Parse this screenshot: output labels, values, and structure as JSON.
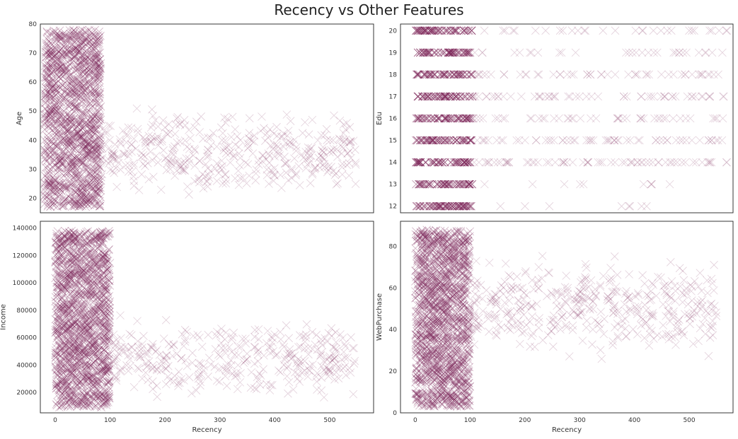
{
  "title": "Recency vs Other Features",
  "colors": {
    "marker": "#7b2458",
    "frame": "#222222"
  },
  "chart_data": [
    {
      "id": "age",
      "type": "scatter",
      "marker": "x",
      "xlabel": "",
      "ylabel": "Age",
      "xlim": [
        -7,
        580
      ],
      "ylim": [
        15,
        80
      ],
      "xticks": [
        0,
        100,
        200,
        300,
        400,
        500
      ],
      "show_xticks": false,
      "yticks": [
        20,
        30,
        40,
        50,
        60,
        70,
        80
      ],
      "ytick_labels": [
        "20",
        "30",
        "40",
        "50",
        "60",
        "70",
        "80"
      ],
      "dense": {
        "x": [
          0,
          100
        ],
        "y": [
          17,
          78
        ],
        "n": 1400
      },
      "sparse": {
        "x": [
          100,
          550
        ],
        "y": [
          18,
          54
        ],
        "n": 420
      },
      "grid": false,
      "legend": "none"
    },
    {
      "id": "edu",
      "type": "scatter",
      "marker": "x",
      "xlabel": "",
      "ylabel": "Edu",
      "xlim": [
        -27,
        560
      ],
      "ylim": [
        11.7,
        20.3
      ],
      "xticks": [
        0,
        100,
        200,
        300,
        400,
        500
      ],
      "show_xticks": false,
      "yticks": [
        12,
        13,
        14,
        15,
        16,
        17,
        18,
        19,
        20
      ],
      "ytick_labels": [
        "12",
        "13",
        "14",
        "15",
        "16",
        "17",
        "18",
        "19",
        "20"
      ],
      "dense": {
        "x": [
          0,
          100
        ],
        "levels": [
          12,
          13,
          14,
          15,
          16,
          17,
          18,
          19,
          20
        ],
        "n_per_level": 60
      },
      "sparse_counts": {
        "12": 8,
        "13": 10,
        "14": 70,
        "15": 60,
        "16": 45,
        "17": 55,
        "18": 50,
        "19": 30,
        "20": 30
      },
      "grid": false,
      "legend": "none"
    },
    {
      "id": "income",
      "type": "scatter",
      "marker": "x",
      "xlabel": "Recency",
      "ylabel": "Income",
      "xlim": [
        -27,
        580
      ],
      "ylim": [
        5000,
        145000
      ],
      "xticks": [
        0,
        100,
        200,
        300,
        400,
        500
      ],
      "xtick_labels": [
        "0",
        "100",
        "200",
        "300",
        "400",
        "500"
      ],
      "show_xticks": true,
      "yticks": [
        20000,
        40000,
        60000,
        80000,
        100000,
        120000,
        140000
      ],
      "ytick_labels": [
        "20000",
        "40000",
        "60000",
        "80000",
        "100000",
        "120000",
        "140000"
      ],
      "dense": {
        "x": [
          0,
          100
        ],
        "y": [
          9000,
          138000
        ],
        "n": 1500
      },
      "sparse": {
        "x": [
          100,
          550
        ],
        "y": [
          10000,
          80000
        ],
        "n": 360
      },
      "grid": false,
      "legend": "none"
    },
    {
      "id": "webpurchase",
      "type": "scatter",
      "marker": "x",
      "xlabel": "Recency",
      "ylabel": "WebPurchase",
      "xlim": [
        -27,
        580
      ],
      "ylim": [
        0,
        92
      ],
      "xticks": [
        0,
        100,
        200,
        300,
        400,
        500
      ],
      "xtick_labels": [
        "0",
        "100",
        "200",
        "300",
        "400",
        "500"
      ],
      "show_xticks": true,
      "yticks": [
        0,
        20,
        40,
        60,
        80
      ],
      "ytick_labels": [
        "0",
        "20",
        "40",
        "60",
        "80"
      ],
      "dense": {
        "x": [
          0,
          100
        ],
        "y": [
          3,
          88
        ],
        "n": 1500
      },
      "sparse": {
        "x": [
          100,
          550
        ],
        "y": [
          23,
          79
        ],
        "n": 420
      },
      "grid": false,
      "legend": "none"
    }
  ]
}
